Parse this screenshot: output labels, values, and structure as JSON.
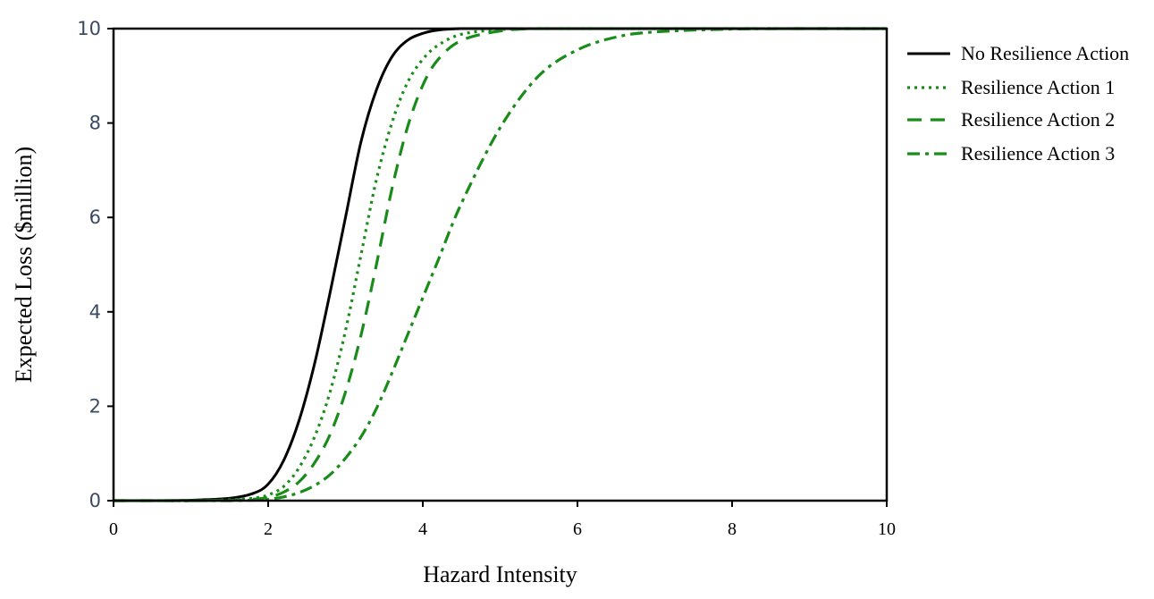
{
  "chart_data": {
    "type": "line",
    "xlabel": "Hazard Intensity",
    "ylabel": "Expected Loss ($million)",
    "xlim": [
      0,
      10
    ],
    "ylim": [
      0,
      10
    ],
    "x_ticks": [
      "0",
      "2",
      "4",
      "6",
      "8",
      "10"
    ],
    "y_ticks": [
      "0",
      "2",
      "4",
      "6",
      "8",
      "10"
    ],
    "grid": false,
    "legend_placement": "right",
    "x": [
      0,
      0.5,
      1,
      1.5,
      1.8,
      2,
      2.2,
      2.4,
      2.6,
      2.8,
      3,
      3.2,
      3.4,
      3.6,
      3.8,
      4,
      4.2,
      4.5,
      5,
      5.5,
      6,
      6.5,
      7,
      8,
      9,
      10
    ],
    "series": [
      {
        "name": "No Resilience Action",
        "color": "#000000",
        "dash": "solid",
        "values": [
          0,
          0,
          0.01,
          0.05,
          0.15,
          0.35,
          0.85,
          1.7,
          2.9,
          4.4,
          6.0,
          7.6,
          8.7,
          9.4,
          9.75,
          9.9,
          9.97,
          10,
          10,
          10,
          10,
          10,
          10,
          10,
          10,
          10
        ]
      },
      {
        "name": "Resilience Action 1",
        "color": "#1a8c1a",
        "dash": "dotted",
        "values": [
          0,
          0,
          0,
          0.02,
          0.05,
          0.12,
          0.3,
          0.7,
          1.35,
          2.3,
          3.6,
          5.2,
          6.8,
          8.0,
          8.85,
          9.35,
          9.65,
          9.88,
          9.98,
          10,
          10,
          10,
          10,
          10,
          10,
          10
        ]
      },
      {
        "name": "Resilience Action 2",
        "color": "#1a8c1a",
        "dash": "dashed",
        "values": [
          0,
          0,
          0,
          0.01,
          0.03,
          0.07,
          0.18,
          0.4,
          0.8,
          1.4,
          2.3,
          3.5,
          5.0,
          6.6,
          7.9,
          8.8,
          9.35,
          9.75,
          9.95,
          10,
          10,
          10,
          10,
          10,
          10,
          10
        ]
      },
      {
        "name": "Resilience Action 3",
        "color": "#1a8c1a",
        "dash": "dash-dot",
        "values": [
          0,
          0,
          0,
          0,
          0.01,
          0.03,
          0.08,
          0.17,
          0.32,
          0.55,
          0.9,
          1.35,
          1.95,
          2.7,
          3.5,
          4.3,
          5.1,
          6.3,
          7.9,
          9.0,
          9.55,
          9.82,
          9.93,
          9.99,
          10,
          10
        ]
      }
    ]
  }
}
